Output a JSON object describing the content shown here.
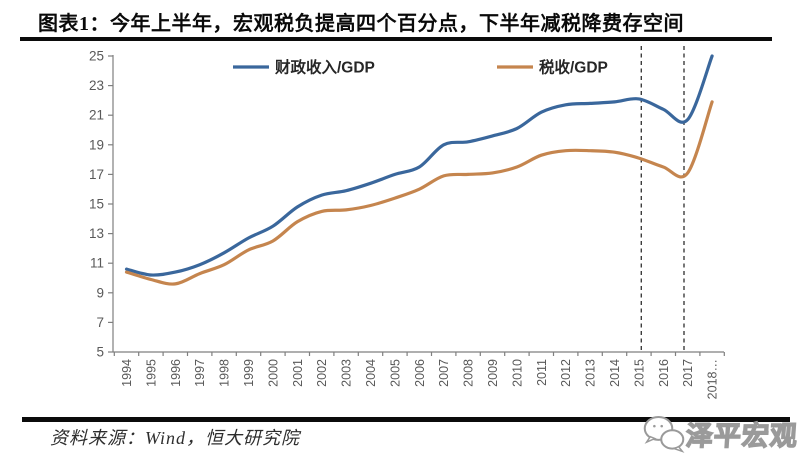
{
  "figure": {
    "title": "图表1：今年上半年，宏观税负提高四个百分点，下半年减税降费存空间",
    "source": "资料来源：Wind，恒大研究院",
    "watermark": "泽平宏观",
    "watermark_icon": "wechat-icon"
  },
  "chart_data": {
    "type": "line",
    "title": "",
    "xlabel": "",
    "ylabel": "",
    "x": [
      1994,
      1995,
      1996,
      1997,
      1998,
      1999,
      2000,
      2001,
      2002,
      2003,
      2004,
      2005,
      2006,
      2007,
      2008,
      2009,
      2010,
      2011,
      2012,
      2013,
      2014,
      2015,
      2016,
      2017,
      2018
    ],
    "x_tick_labels": [
      "1994",
      "1995",
      "1996",
      "1997",
      "1998",
      "1999",
      "2000",
      "2001",
      "2002",
      "2003",
      "2004",
      "2005",
      "2006",
      "2007",
      "2008",
      "2009",
      "2010",
      "2011",
      "2012",
      "2013",
      "2014",
      "2015",
      "2016",
      "2017",
      "2018…"
    ],
    "series": [
      {
        "id": "fiscal-revenue-gdp",
        "name": "财政收入/GDP",
        "color": "#3A679C",
        "values": [
          10.6,
          10.2,
          10.4,
          10.9,
          11.7,
          12.7,
          13.5,
          14.8,
          15.6,
          15.9,
          16.4,
          17.0,
          17.5,
          19.0,
          19.2,
          19.6,
          20.1,
          21.2,
          21.7,
          21.8,
          21.9,
          22.1,
          21.4,
          20.7,
          25.0
        ]
      },
      {
        "id": "tax-gdp",
        "name": "税收/GDP",
        "color": "#C5854E",
        "values": [
          10.4,
          9.9,
          9.6,
          10.3,
          10.9,
          11.9,
          12.5,
          13.8,
          14.5,
          14.6,
          14.9,
          15.4,
          16.0,
          16.9,
          17.0,
          17.1,
          17.5,
          18.3,
          18.6,
          18.6,
          18.5,
          18.1,
          17.5,
          17.1,
          21.9
        ]
      }
    ],
    "ylim": [
      5,
      25
    ],
    "ytick_step": 2,
    "grid": false,
    "legend_position": "top",
    "axis_color": "#7f7f7f",
    "tick_label_color": "#595959",
    "legend_text_color": "#262626",
    "annotations": {
      "dashed_vlines_x": [
        2015.1,
        2016.85
      ],
      "vline_color": "#3d3d3d"
    }
  }
}
